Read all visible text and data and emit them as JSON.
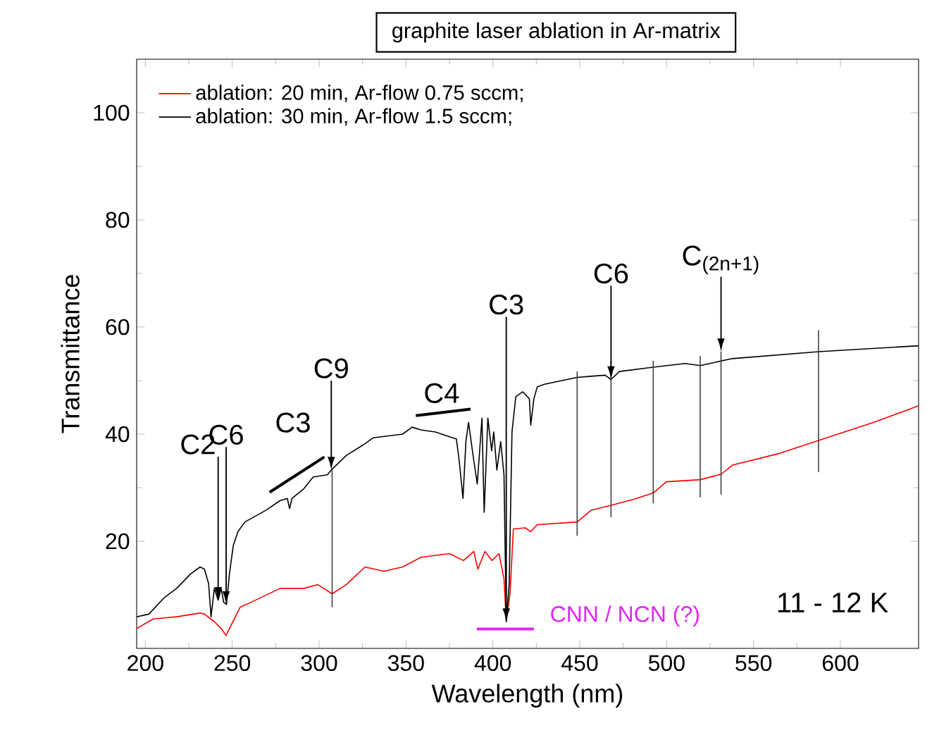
{
  "chart_data": {
    "type": "line",
    "title": "graphite laser ablation in Ar-matrix",
    "xlabel": "Wavelength (nm)",
    "ylabel": "Transmittance",
    "xlim": [
      195,
      645
    ],
    "ylim": [
      0,
      110
    ],
    "xticks": [
      200,
      250,
      300,
      350,
      400,
      450,
      500,
      550,
      600
    ],
    "yticks": [
      20,
      40,
      60,
      80,
      100
    ],
    "legend": "top left",
    "series": [
      {
        "name": "ablation: 20 min, Ar-flow 0.75 sccm;",
        "color": "#ff0000",
        "x": [
          195,
          204.5,
          218,
          231.5,
          234,
          239.7,
          243.6,
          246.5,
          248.4,
          254.6,
          261.4,
          277.6,
          291.2,
          299.3,
          307.5,
          315.6,
          326.4,
          337.3,
          348,
          358.6,
          375,
          383.1,
          389,
          391.4,
          395.4,
          399.5,
          403.5,
          406.4,
          407.7,
          409.9,
          411.8,
          418.6,
          421.8,
          425.5,
          448.5,
          456.6,
          468,
          480.7,
          492.3,
          499.8,
          519.3,
          531.3,
          537.8,
          565,
          587.4,
          619.2,
          645
        ],
        "values": [
          3.7,
          5.5,
          5.9,
          6.6,
          6.4,
          5.0,
          3.7,
          2.4,
          3.7,
          7.7,
          8.7,
          11.2,
          11.2,
          11.9,
          10.2,
          11.9,
          15.2,
          14.4,
          15.2,
          17.0,
          17.7,
          16.4,
          18.1,
          14.8,
          18.1,
          16.4,
          17.7,
          13.0,
          5.0,
          10.3,
          22.3,
          22.5,
          21.8,
          23.1,
          23.6,
          25.8,
          26.7,
          27.8,
          29.0,
          31.1,
          31.5,
          32.5,
          34.2,
          36.4,
          38.8,
          42.2,
          45.3
        ]
      },
      {
        "name": "ablation: 30 min, Ar-flow 1.5 sccm;",
        "color": "#000000",
        "x": [
          195,
          202,
          211,
          218,
          226,
          231.5,
          234,
          236.4,
          237.8,
          239.7,
          241.9,
          243.6,
          245.1,
          246.7,
          248.4,
          250.6,
          253.3,
          257.3,
          269.5,
          277.6,
          281.7,
          283,
          284.4,
          291.2,
          296.6,
          304.7,
          307,
          315.6,
          326.4,
          331,
          348,
          353.5,
          358.6,
          367,
          375,
          379,
          380.6,
          382.8,
          384.5,
          386,
          389,
          391,
          392.4,
          393.7,
          395,
          397.1,
          399.3,
          400.5,
          402.3,
          404.5,
          406.4,
          407.7,
          409.4,
          411,
          413.2,
          417.2,
          421,
          421.8,
          423.6,
          425.5,
          429.6,
          448.5,
          456.5,
          464.6,
          468,
          472.8,
          492.3,
          510.7,
          519.3,
          537.8,
          587.4,
          645
        ],
        "values": [
          5.9,
          6.4,
          9.5,
          11.2,
          13.9,
          15.2,
          14.8,
          12.1,
          5.9,
          11.2,
          9.0,
          11.2,
          8.6,
          8.2,
          13.9,
          19.2,
          21.8,
          23.6,
          25.8,
          27.6,
          28.0,
          26.1,
          28.0,
          29.8,
          32.0,
          32.4,
          33.3,
          36.0,
          38.2,
          39.3,
          40.0,
          41.3,
          40.8,
          40.4,
          39.5,
          39.1,
          35.1,
          28.0,
          38.7,
          42.2,
          35.1,
          30.7,
          36.9,
          43.0,
          25.4,
          43.0,
          36.9,
          40.4,
          33.3,
          38.6,
          32.4,
          5.0,
          12.1,
          40.4,
          47.0,
          47.9,
          46.6,
          41.7,
          46.6,
          48.8,
          49.3,
          50.6,
          50.8,
          51.0,
          50.2,
          51.7,
          52.5,
          53.2,
          52.8,
          54.1,
          55.4,
          56.5
        ]
      },
      {
        "type": "line",
        "color": "#404040",
        "x": [
          307.5,
          307.5
        ],
        "values": [
          7.7,
          33.4
        ]
      },
      {
        "type": "line",
        "color": "#404040",
        "x": [
          448.5,
          448.5
        ],
        "values": [
          21.0,
          51.7
        ]
      },
      {
        "type": "line",
        "color": "#404040",
        "x": [
          468,
          468
        ],
        "values": [
          24.5,
          53.7
        ]
      },
      {
        "type": "line",
        "color": "#404040",
        "x": [
          492.3,
          492.3
        ],
        "values": [
          27.1,
          53.7
        ]
      },
      {
        "type": "line",
        "color": "#404040",
        "x": [
          519.3,
          519.3
        ],
        "values": [
          28.2,
          54.6
        ]
      },
      {
        "type": "line",
        "color": "#404040",
        "x": [
          531.3,
          531.3
        ],
        "values": [
          28.7,
          55.4
        ]
      },
      {
        "type": "line",
        "color": "#404040",
        "x": [
          587.4,
          587.4
        ],
        "values": [
          32.9,
          59.4
        ]
      }
    ],
    "annotations": [
      {
        "text": "C2",
        "x": 241.9,
        "y": 9.0
      },
      {
        "text": "C6",
        "x": 246.5,
        "y": 8.2
      },
      {
        "text": "C9",
        "x": 307,
        "y": 33.3
      },
      "C3",
      "C4",
      {
        "text": "C3",
        "x": 407.7,
        "y": 5.0
      },
      {
        "text": "C6",
        "x": 468,
        "y": 50.2
      },
      {
        "text": "C$_{(2n+1)}$",
        "x": 531.3,
        "y": 55.4
      },
      "CNN / NCN (?)",
      "11 - 12 K"
    ]
  }
}
